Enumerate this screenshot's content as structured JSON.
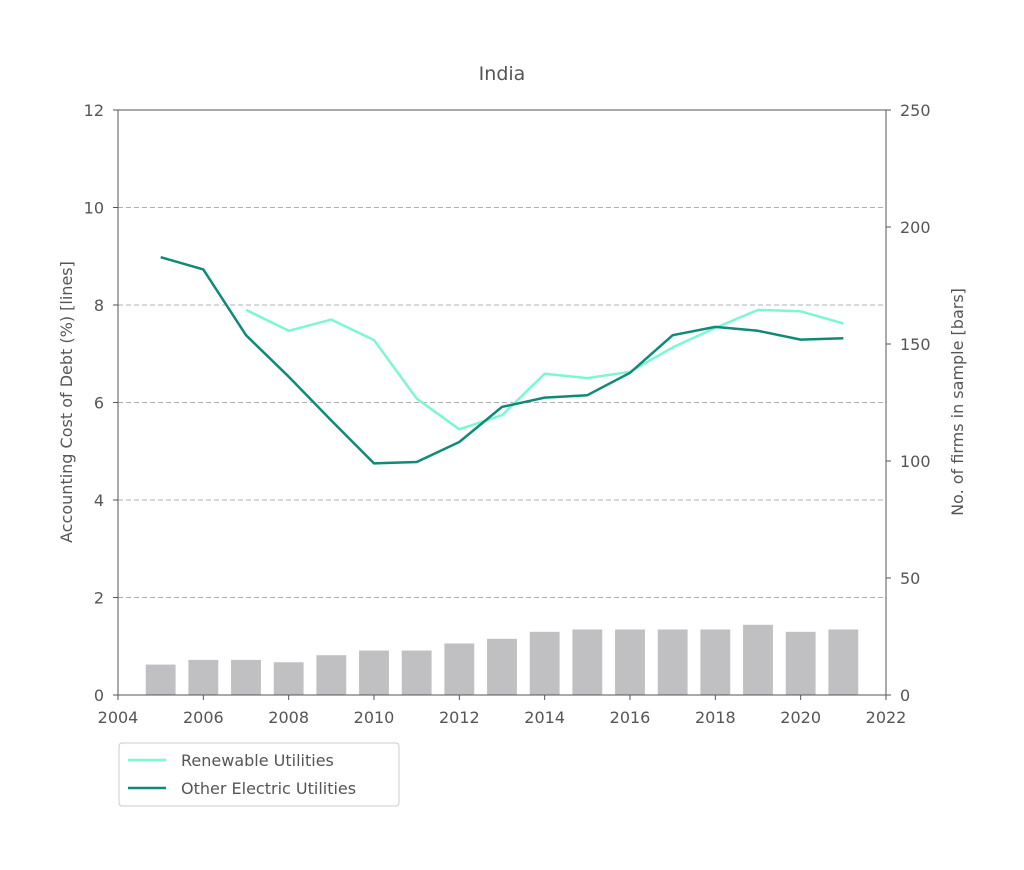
{
  "chart_data": {
    "type": "line",
    "title": "India",
    "ylabel": "Accounting Cost of Debt (%) [lines]",
    "y2label": "No. of firms in sample  [bars]",
    "xlim": [
      2004,
      2022
    ],
    "ylim": [
      0,
      12
    ],
    "y2lim": [
      0,
      250
    ],
    "xticks": [
      2004,
      2006,
      2008,
      2010,
      2012,
      2014,
      2016,
      2018,
      2020,
      2022
    ],
    "yticks": [
      0,
      2,
      4,
      6,
      8,
      10,
      12
    ],
    "y2ticks": [
      0,
      50,
      100,
      150,
      200,
      250
    ],
    "grid": "horizontal dashed at left-axis ticks",
    "legend_position": "below-left",
    "series": [
      {
        "name": "Renewable Utilities",
        "color": "#7df7d3",
        "x": [
          2007,
          2008,
          2009,
          2010,
          2011,
          2012,
          2013,
          2014,
          2015,
          2016,
          2017,
          2018,
          2019,
          2020,
          2021
        ],
        "values": [
          7.9,
          7.47,
          7.7,
          7.28,
          6.08,
          5.45,
          5.74,
          6.59,
          6.5,
          6.63,
          7.13,
          7.53,
          7.9,
          7.87,
          7.62
        ]
      },
      {
        "name": "Other Electric Utilities",
        "color": "#0f8a79",
        "x": [
          2005,
          2006,
          2007,
          2008,
          2009,
          2010,
          2011,
          2012,
          2013,
          2014,
          2015,
          2016,
          2017,
          2018,
          2019,
          2020,
          2021
        ],
        "values": [
          8.98,
          8.73,
          7.38,
          6.53,
          5.63,
          4.75,
          4.78,
          5.19,
          5.91,
          6.1,
          6.15,
          6.61,
          7.38,
          7.55,
          7.47,
          7.29,
          7.32
        ]
      }
    ],
    "bars": {
      "name": "No. of firms in sample",
      "color": "#c0c0c2",
      "x": [
        2005,
        2006,
        2007,
        2008,
        2009,
        2010,
        2011,
        2012,
        2013,
        2014,
        2015,
        2016,
        2017,
        2018,
        2019,
        2020,
        2021
      ],
      "values": [
        13,
        15,
        15,
        14,
        17,
        19,
        19,
        22,
        24,
        27,
        28,
        28,
        28,
        28,
        30,
        27,
        28
      ]
    }
  }
}
